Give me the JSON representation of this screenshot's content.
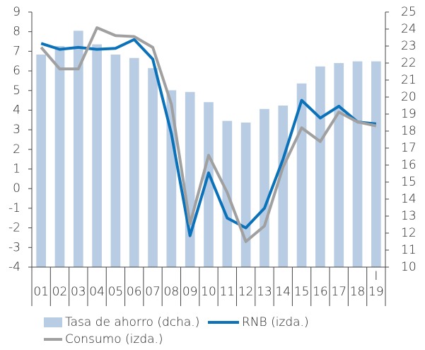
{
  "chart_data": {
    "type": "bar-line",
    "categories": [
      "01",
      "02",
      "03",
      "04",
      "05",
      "06",
      "07",
      "08",
      "09",
      "10",
      "11",
      "12",
      "13",
      "14",
      "15",
      "16",
      "17",
      "18",
      "I\n19"
    ],
    "series": [
      {
        "name": "Tasa de ahorro (dcha.)",
        "type": "bar",
        "axis": "y2",
        "color": "#b8cce4",
        "values": [
          22.5,
          23.0,
          23.9,
          23.1,
          22.5,
          22.3,
          21.7,
          20.4,
          20.3,
          19.7,
          18.6,
          18.5,
          19.3,
          19.5,
          20.8,
          21.8,
          22.0,
          22.1,
          22.1
        ]
      },
      {
        "name": "RNB (izda.)",
        "type": "line",
        "color": "#0b72b9",
        "values": [
          7.4,
          7.1,
          7.2,
          7.1,
          7.15,
          7.6,
          6.6,
          2.8,
          -2.4,
          0.8,
          -1.5,
          -2.0,
          -1.0,
          1.5,
          4.5,
          3.6,
          4.2,
          3.4,
          3.3
        ]
      },
      {
        "name": "Consumo (izda.)",
        "type": "line",
        "color": "#a0a0a0",
        "values": [
          7.2,
          6.1,
          6.1,
          8.2,
          7.8,
          7.75,
          7.2,
          4.3,
          -1.8,
          1.7,
          -0.2,
          -2.7,
          -1.9,
          1.1,
          3.1,
          2.4,
          3.9,
          3.4,
          3.2
        ]
      }
    ],
    "ylim": [
      -4,
      9
    ],
    "yticks": [
      -4,
      -3,
      -2,
      -1,
      0,
      1,
      2,
      3,
      4,
      5,
      6,
      7,
      8,
      9
    ],
    "y2lim": [
      10,
      25
    ],
    "y2ticks": [
      10,
      11,
      12,
      13,
      14,
      15,
      16,
      17,
      18,
      19,
      20,
      21,
      22,
      23,
      24,
      25
    ]
  }
}
